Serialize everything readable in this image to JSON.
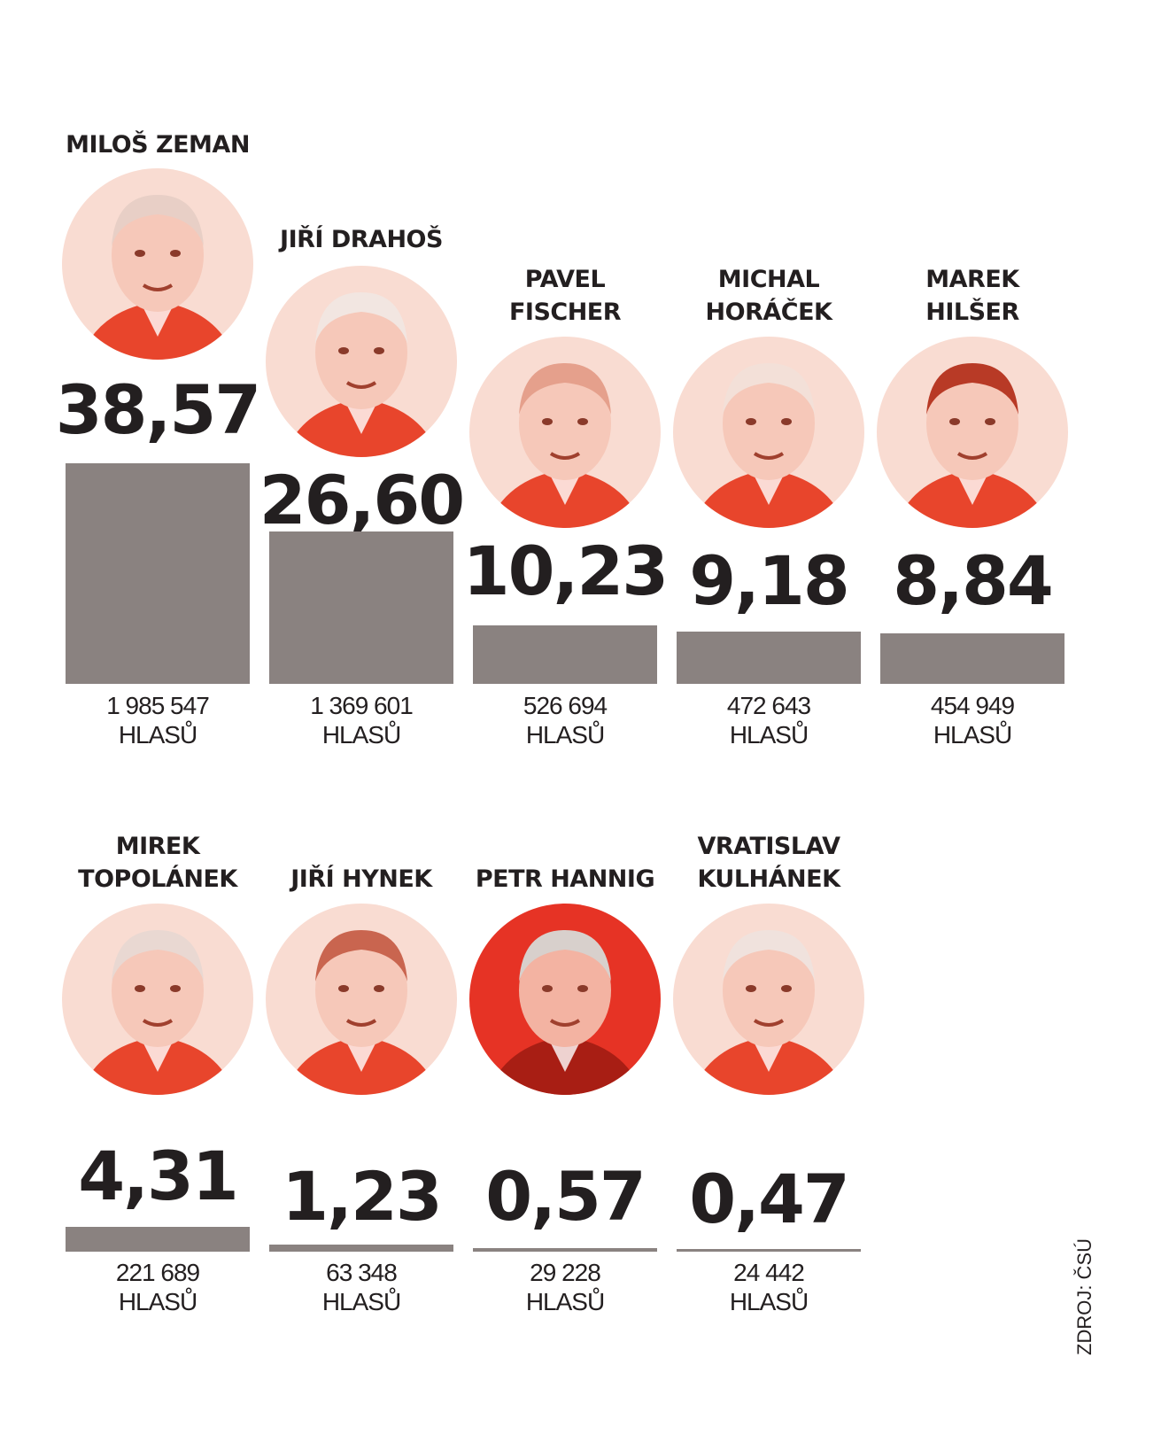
{
  "chart_data": {
    "type": "bar",
    "value_unit": "%",
    "votes_unit": "HLASŮ",
    "candidates": [
      {
        "name": "MILOŠ ZEMAN",
        "percent": "38,57",
        "value": 38.57,
        "votes": "1 985 547"
      },
      {
        "name": "JIŘÍ DRAHOŠ",
        "percent": "26,60",
        "value": 26.6,
        "votes": "1 369 601"
      },
      {
        "name": "PAVEL\nFISCHER",
        "percent": "10,23",
        "value": 10.23,
        "votes": "526 694"
      },
      {
        "name": "MICHAL\nHORÁČEK",
        "percent": "9,18",
        "value": 9.18,
        "votes": "472 643"
      },
      {
        "name": "MAREK\nHILŠER",
        "percent": "8,84",
        "value": 8.84,
        "votes": "454 949"
      },
      {
        "name": "MIREK\nTOPOLÁNEK",
        "percent": "4,31",
        "value": 4.31,
        "votes": "221 689"
      },
      {
        "name": "JIŘÍ HYNEK",
        "percent": "1,23",
        "value": 1.23,
        "votes": "63 348"
      },
      {
        "name": "PETR HANNIG",
        "percent": "0,57",
        "value": 0.57,
        "votes": "29 228"
      },
      {
        "name": "VRATISLAV\nKULHÁNEK",
        "percent": "0,47",
        "value": 0.47,
        "votes": "24 442"
      }
    ]
  },
  "source": "ZDROJ: ČSÚ",
  "colors": {
    "bar": "#8a8280",
    "accent": "#e8452c",
    "text": "#231f20"
  }
}
